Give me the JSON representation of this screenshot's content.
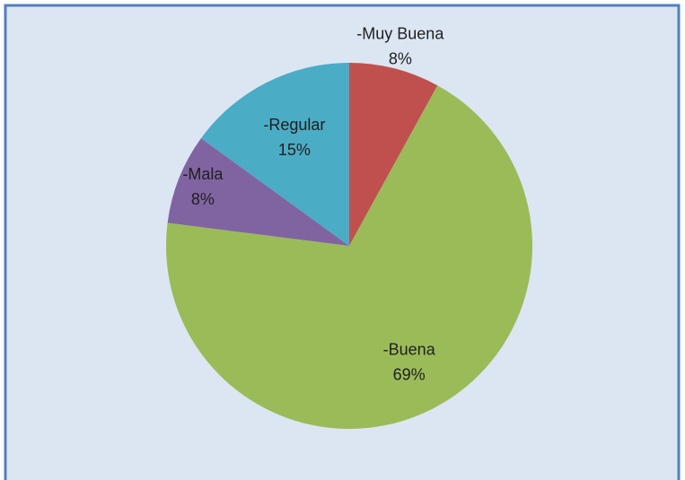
{
  "chart_data": {
    "type": "pie",
    "categories": [
      "-Muy Buena",
      "-Buena",
      "-Mala",
      "-Regular"
    ],
    "values": [
      8,
      69,
      8,
      15
    ],
    "value_labels": [
      "8%",
      "69%",
      "8%",
      "15%"
    ],
    "colors": [
      "#c0504d",
      "#9bbb59",
      "#8064a2",
      "#4bacc6"
    ]
  }
}
